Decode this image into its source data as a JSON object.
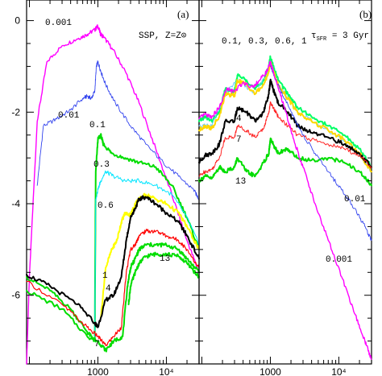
{
  "chart_data": [
    {
      "panel": "(a)",
      "type": "line",
      "title": "SSP, Z=Z⊙",
      "xscale": "log",
      "xlim": [
        91,
        30000
      ],
      "ylim": [
        -7.5,
        0.45
      ],
      "xticks": [
        {
          "value": 1000,
          "label": "1000"
        },
        {
          "value": 10000,
          "label": "10⁴"
        }
      ],
      "yticks": [
        {
          "value": 0,
          "label": "0"
        },
        {
          "value": -2,
          "label": "-2"
        },
        {
          "value": -4,
          "label": "-4"
        },
        {
          "value": -6,
          "label": "-6"
        }
      ],
      "grid": false,
      "series": [
        {
          "name": "0.001",
          "color": "#ff00ff",
          "lw": 1.4,
          "x": [
            91,
            100,
            130,
            180,
            300,
            500,
            700,
            900,
            1000,
            1100,
            1200,
            1600,
            2500,
            4000,
            7000,
            12000,
            20000,
            30000
          ],
          "y": [
            -7.5,
            -5.6,
            -2.2,
            -0.9,
            -0.55,
            -0.4,
            -0.3,
            -0.2,
            -0.12,
            -0.3,
            -0.35,
            -0.6,
            -1.1,
            -1.8,
            -2.8,
            -3.8,
            -4.8,
            -5.5
          ]
        },
        {
          "name": "0.01",
          "color": "#3344ee",
          "lw": 0.9,
          "x": [
            130,
            160,
            250,
            400,
            600,
            700,
            800,
            900,
            950,
            1000,
            1100,
            1300,
            1800,
            3000,
            5000,
            9000,
            15000,
            25000,
            30000
          ],
          "y": [
            -3.6,
            -2.3,
            -2.15,
            -1.95,
            -1.7,
            -1.65,
            -1.7,
            -1.55,
            -1.0,
            -0.9,
            -1.1,
            -1.4,
            -1.8,
            -2.3,
            -2.7,
            -3.1,
            -3.4,
            -3.7,
            -3.9
          ]
        },
        {
          "name": "0.1",
          "color": "#00dd00",
          "lw": 2.0,
          "x": [
            91,
            200,
            400,
            700,
            900,
            930,
            1000,
            1100,
            1200,
            1600,
            2500,
            4000,
            7000,
            12000,
            20000,
            30000
          ],
          "y": [
            -5.6,
            -5.9,
            -6.3,
            -6.8,
            -7.0,
            -3.3,
            -2.6,
            -2.5,
            -2.7,
            -2.9,
            -3.0,
            -3.1,
            -3.2,
            -3.6,
            -4.3,
            -5.0
          ]
        },
        {
          "name": "0.3",
          "color": "#00e5ff",
          "lw": 1.0,
          "x": [
            900,
            930,
            1000,
            1100,
            1300,
            1700,
            2500,
            4000,
            7000,
            12000,
            20000,
            30000
          ],
          "y": [
            -7.0,
            -3.9,
            -3.7,
            -3.5,
            -3.3,
            -3.4,
            -3.5,
            -3.5,
            -3.6,
            -3.8,
            -4.3,
            -4.9
          ]
        },
        {
          "name": "0.6",
          "color": "#ffff00",
          "lw": 2.0,
          "x": [
            1100,
            1300,
            1600,
            1900,
            2200,
            2500,
            3000,
            3500,
            4000,
            5000,
            7000,
            10000,
            15000,
            20000,
            30000
          ],
          "y": [
            -6.5,
            -5.4,
            -5.0,
            -4.8,
            -4.4,
            -4.2,
            -4.25,
            -4.0,
            -3.9,
            -3.8,
            -3.9,
            -4.0,
            -4.2,
            -4.5,
            -5.0
          ]
        },
        {
          "name": "1",
          "color": "#000000",
          "lw": 2.0,
          "x": [
            91,
            200,
            500,
            900,
            1000,
            1300,
            1700,
            2200,
            2600,
            3000,
            3500,
            4000,
            5000,
            7000,
            10000,
            15000,
            20000,
            30000
          ],
          "y": [
            -5.55,
            -5.8,
            -6.2,
            -6.6,
            -6.7,
            -6.1,
            -6.0,
            -5.6,
            -4.8,
            -4.3,
            -4.1,
            -3.9,
            -3.85,
            -4.0,
            -4.2,
            -4.4,
            -4.7,
            -5.2
          ]
        },
        {
          "name": "4",
          "color": "#ff0000",
          "lw": 1.2,
          "x": [
            91,
            300,
            700,
            1000,
            1300,
            1700,
            2200,
            2600,
            3000,
            3500,
            4000,
            5000,
            7000,
            10000,
            15000,
            20000,
            30000
          ],
          "y": [
            -5.7,
            -6.2,
            -6.7,
            -6.9,
            -7.1,
            -6.9,
            -6.7,
            -5.5,
            -5.0,
            -4.9,
            -4.7,
            -4.6,
            -4.6,
            -4.7,
            -4.8,
            -5.0,
            -5.4
          ]
        },
        {
          "name": "7",
          "color": "#00dd00",
          "lw": 2.0,
          "x": [
            91,
            300,
            700,
            1000,
            1300,
            1700,
            2300,
            2700,
            3000,
            3500,
            4000,
            5000,
            7000,
            10000,
            15000,
            20000,
            30000
          ],
          "y": [
            -5.9,
            -6.3,
            -6.9,
            -7.0,
            -7.2,
            -7.0,
            -6.9,
            -5.8,
            -5.4,
            -5.2,
            -5.0,
            -4.9,
            -4.9,
            -4.9,
            -5.0,
            -5.2,
            -5.5
          ]
        },
        {
          "name": "13",
          "color": "#00dd00",
          "lw": 2.0,
          "x": [
            2800,
            3000,
            3500,
            4000,
            5000,
            7000,
            10000,
            15000,
            20000,
            30000
          ],
          "y": [
            -6.2,
            -5.8,
            -5.5,
            -5.3,
            -5.15,
            -5.1,
            -5.1,
            -5.15,
            -5.3,
            -5.6
          ]
        }
      ],
      "annotations": [
        "0.001",
        "0.01",
        "0.1",
        "0.3",
        "0.6",
        "1",
        "4",
        "7",
        "13"
      ]
    },
    {
      "panel": "(b)",
      "type": "line",
      "title": "τSFR = 3 Gyr",
      "title_main": "τ",
      "title_sub": "SFR",
      "title_rest": " = 3 Gyr",
      "subtitle": "0.1, 0.3, 0.6, 1",
      "xscale": "log",
      "xlim": [
        91,
        30000
      ],
      "ylim": [
        -7.5,
        0.45
      ],
      "xticks": [
        {
          "value": 1000,
          "label": "1000"
        },
        {
          "value": 10000,
          "label": "10⁴"
        }
      ],
      "grid": false,
      "series": [
        {
          "name": "0.1",
          "color": "#00ff66",
          "lw": 2.0,
          "x": [
            91,
            110,
            140,
            180,
            220,
            300,
            330,
            450,
            600,
            800,
            950,
            1000,
            1100,
            1300,
            1800,
            2500,
            4000,
            7000,
            12000,
            20000,
            30000
          ],
          "y": [
            -2.2,
            -2.1,
            -2.2,
            -2.0,
            -1.5,
            -1.55,
            -1.2,
            -1.3,
            -1.5,
            -1.3,
            -1.0,
            -0.8,
            -1.0,
            -1.3,
            -1.6,
            -1.9,
            -2.1,
            -2.3,
            -2.5,
            -2.8,
            -3.2
          ]
        },
        {
          "name": "0.3",
          "color": "#66ccff",
          "lw": 1.0,
          "x": [
            91,
            140,
            220,
            330,
            600,
            950,
            1000,
            1300,
            2500,
            7000,
            20000,
            30000
          ],
          "y": [
            -2.3,
            -2.3,
            -1.6,
            -1.3,
            -1.6,
            -1.1,
            -0.9,
            -1.4,
            -2.0,
            -2.4,
            -2.9,
            -3.3
          ]
        },
        {
          "name": "0.6",
          "color": "#ffd700",
          "lw": 2.0,
          "x": [
            91,
            110,
            140,
            180,
            220,
            300,
            330,
            450,
            600,
            800,
            950,
            1000,
            1100,
            1300,
            1800,
            2500,
            4000,
            7000,
            12000,
            20000,
            30000
          ],
          "y": [
            -2.4,
            -2.3,
            -2.35,
            -2.1,
            -1.6,
            -1.65,
            -1.3,
            -1.4,
            -1.6,
            -1.4,
            -1.1,
            -0.9,
            -1.1,
            -1.4,
            -1.7,
            -2.0,
            -2.2,
            -2.4,
            -2.6,
            -2.9,
            -3.3
          ]
        },
        {
          "name": "1",
          "color": "#000000",
          "lw": 2.0,
          "x": [
            91,
            110,
            140,
            180,
            220,
            300,
            330,
            450,
            600,
            800,
            950,
            1000,
            1100,
            1300,
            1800,
            2500,
            4000,
            7000,
            12000,
            20000,
            30000
          ],
          "y": [
            -3.1,
            -2.95,
            -2.9,
            -2.7,
            -2.2,
            -2.2,
            -1.9,
            -2.0,
            -2.2,
            -2.0,
            -1.6,
            -1.3,
            -1.5,
            -1.8,
            -2.0,
            -2.3,
            -2.45,
            -2.55,
            -2.7,
            -2.9,
            -3.2
          ]
        },
        {
          "name": "4",
          "color": "#ff2222",
          "lw": 1.0,
          "x": [
            91,
            110,
            140,
            180,
            220,
            300,
            330,
            450,
            600,
            800,
            950,
            1000,
            1100,
            1300,
            1800,
            2500,
            4000,
            7000,
            12000,
            20000,
            30000
          ],
          "y": [
            -3.4,
            -3.3,
            -3.25,
            -3.0,
            -2.55,
            -2.55,
            -2.3,
            -2.4,
            -2.55,
            -2.35,
            -2.0,
            -1.8,
            -1.9,
            -2.1,
            -2.3,
            -2.5,
            -2.6,
            -2.7,
            -2.8,
            -2.95,
            -3.2
          ]
        },
        {
          "name": "13",
          "color": "#00dd00",
          "lw": 2.0,
          "x": [
            91,
            110,
            140,
            180,
            220,
            300,
            330,
            450,
            600,
            800,
            950,
            1000,
            1100,
            1300,
            1800,
            2500,
            4000,
            7000,
            12000,
            20000,
            30000
          ],
          "y": [
            -3.5,
            -3.4,
            -3.45,
            -3.2,
            -3.3,
            -3.2,
            -3.0,
            -3.3,
            -3.4,
            -3.1,
            -2.9,
            -2.6,
            -2.7,
            -2.9,
            -2.8,
            -3.0,
            -3.05,
            -3.0,
            -3.1,
            -3.3,
            -3.6
          ]
        },
        {
          "name": "0.01",
          "color": "#3344ee",
          "lw": 0.9,
          "x": [
            1000,
            1200,
            1600,
            2200,
            3000,
            4500,
            7000,
            11000,
            17000,
            24000,
            30000
          ],
          "y": [
            -1.0,
            -1.3,
            -1.7,
            -2.1,
            -2.5,
            -2.9,
            -3.3,
            -3.7,
            -4.1,
            -4.5,
            -4.8
          ]
        },
        {
          "name": "0.001",
          "color": "#ff00ff",
          "lw": 1.4,
          "x": [
            91,
            110,
            140,
            180,
            230,
            300,
            400,
            550,
            700,
            900,
            1000,
            1200,
            1600,
            2200,
            3000,
            4500,
            7000,
            11000,
            17000,
            24000,
            30000
          ],
          "y": [
            -2.15,
            -2.05,
            -2.1,
            -1.9,
            -1.5,
            -1.55,
            -1.35,
            -1.45,
            -1.3,
            -1.1,
            -0.9,
            -1.3,
            -1.9,
            -2.6,
            -3.2,
            -4.0,
            -4.8,
            -5.6,
            -6.4,
            -7.0,
            -7.4
          ]
        }
      ],
      "annotations": [
        "4",
        "7",
        "13",
        "0.01",
        "0.001"
      ]
    }
  ]
}
